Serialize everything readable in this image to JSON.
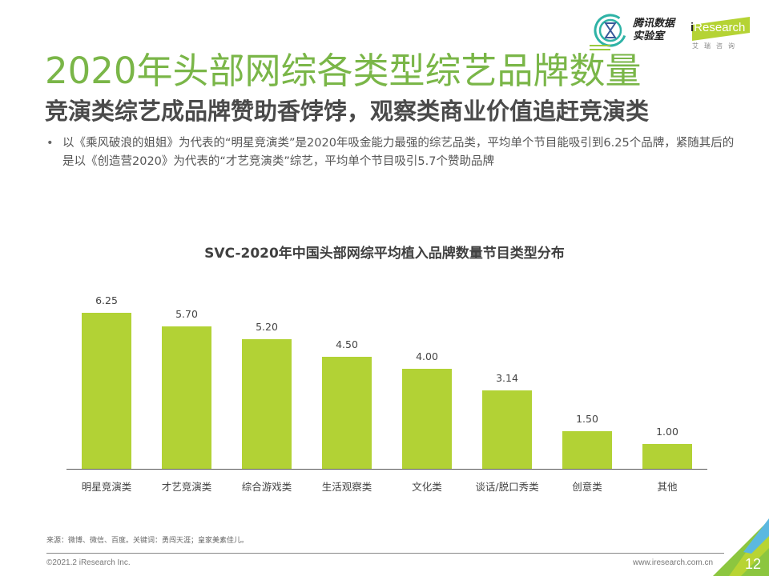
{
  "header": {
    "title": "2020年头部网综各类型综艺品牌数量",
    "subtitle": "竞演类综艺成品牌赞助香饽饽，观察类商业价值追赶竞演类",
    "bullet": "以《乘风破浪的姐姐》为代表的“明星竞演类”是2020年吸金能力最强的综艺品类，平均单个节目能吸引到6.25个品牌，紧随其后的是以《创造营2020》为代表的“才艺竞演类”综艺，平均单个节目吸引5.7个赞助品牌"
  },
  "logos": {
    "tencent_line1": "腾讯数据",
    "tencent_line2": "实验室",
    "iresearch_i": "i",
    "iresearch_name": "Research",
    "iresearch_cn": "艾瑞咨询"
  },
  "colors": {
    "title_green": "#7ab648",
    "bar_green": "#b2d235",
    "text_gray": "#404040"
  },
  "chart_data": {
    "type": "bar",
    "title": "SVC-2020年中国头部网综平均植入品牌数量节目类型分布",
    "categories": [
      "明星竞演类",
      "才艺竞演类",
      "综合游戏类",
      "生活观察类",
      "文化类",
      "谈话/脱口秀类",
      "创意类",
      "其他"
    ],
    "values": [
      6.25,
      5.7,
      5.2,
      4.5,
      4.0,
      3.14,
      1.5,
      1.0
    ],
    "value_labels": [
      "6.25",
      "5.70",
      "5.20",
      "4.50",
      "4.00",
      "3.14",
      "1.50",
      "1.00"
    ],
    "xlabel": "",
    "ylabel": "",
    "ylim": [
      0,
      7
    ],
    "grid": false,
    "legend": "none",
    "data_labels": true
  },
  "footer": {
    "source": "来源：微博、微信、百度。关键词：勇闯天涯；皇家美素佳儿。",
    "copyright": "©2021.2 iResearch Inc.",
    "website": "www.iresearch.com.cn",
    "page_number": "12"
  }
}
